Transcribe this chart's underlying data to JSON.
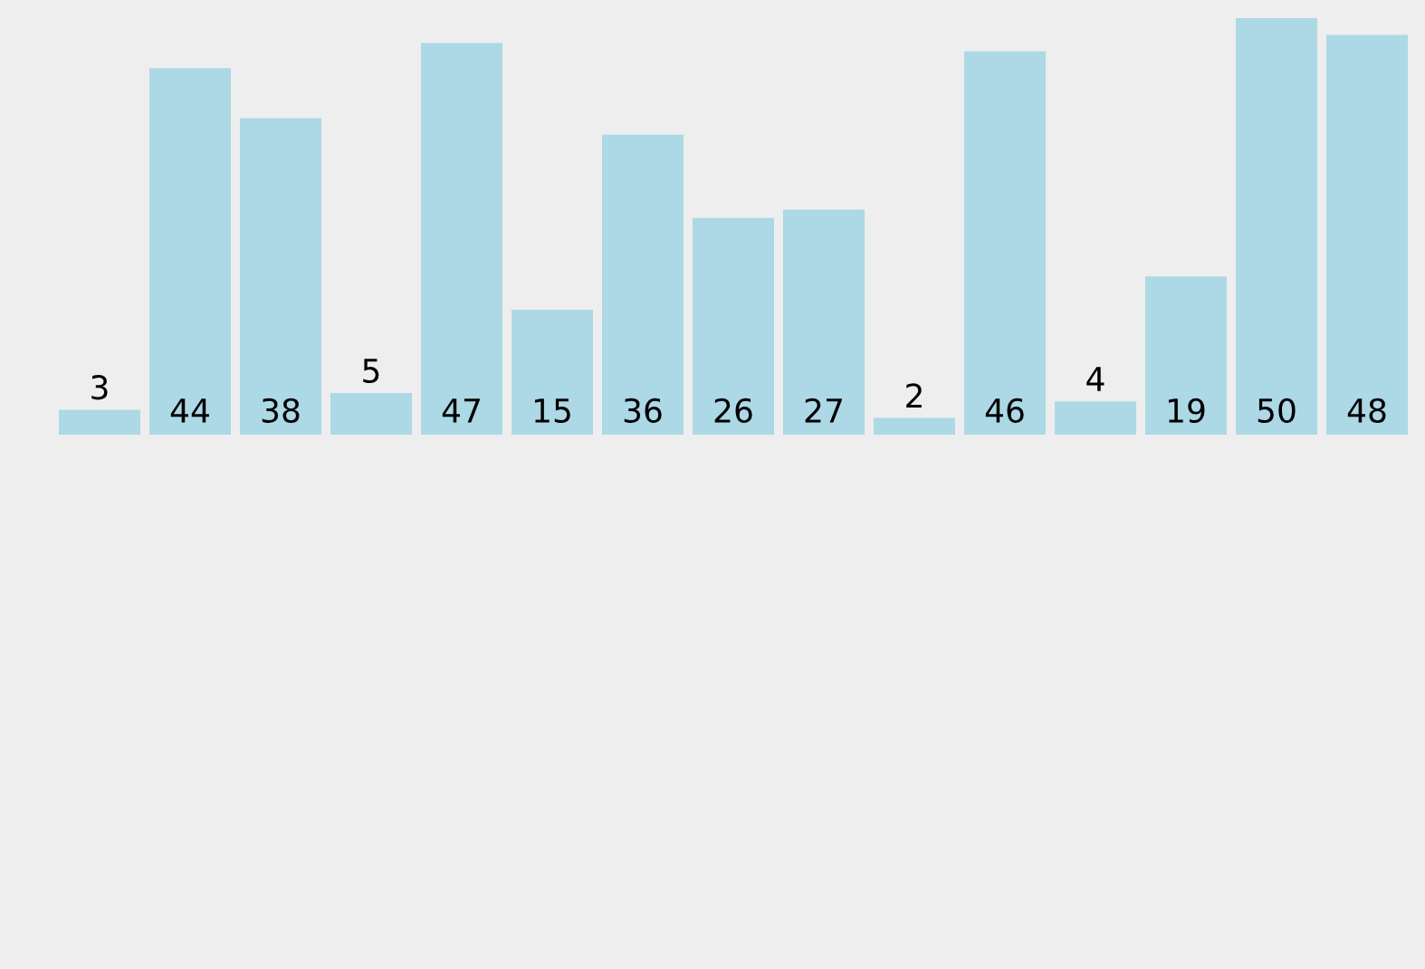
{
  "chart_data": {
    "type": "bar",
    "categories": [
      null,
      null,
      null,
      null,
      null,
      null,
      null,
      null,
      null,
      null,
      null,
      null,
      null,
      null,
      null
    ],
    "values": [
      3,
      44,
      38,
      5,
      47,
      15,
      36,
      26,
      27,
      2,
      46,
      4,
      19,
      50,
      48
    ],
    "color": "#add8e6",
    "data_labels": true
  }
}
